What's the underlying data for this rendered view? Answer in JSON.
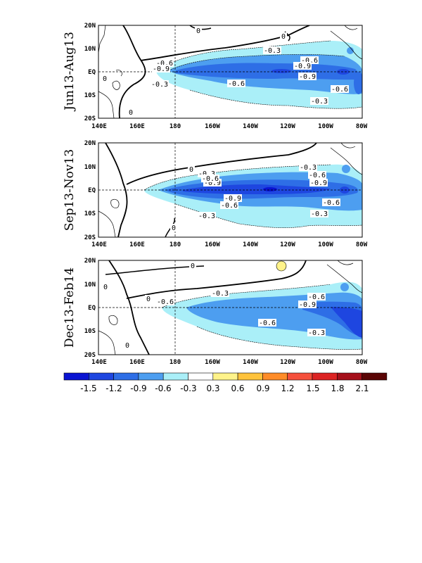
{
  "panels": [
    {
      "label": "Jun13-Aug13",
      "lat_ticks": [
        "20N",
        "10N",
        "EQ",
        "10S",
        "20S"
      ],
      "lon_ticks": [
        "140E",
        "160E",
        "180",
        "160W",
        "140W",
        "120W",
        "100W",
        "80W"
      ],
      "contour_labels": [
        "-0.3",
        "-0.6",
        "-0.9",
        "-0.9",
        "-0.6",
        "-0.6",
        "-0.9",
        "-0.6",
        "-0.3",
        "-0.3",
        "0",
        "0",
        "0",
        "0"
      ]
    },
    {
      "label": "Sep13-Nov13",
      "lat_ticks": [
        "20N",
        "10N",
        "EQ",
        "10S",
        "20S"
      ],
      "lon_ticks": [
        "140E",
        "160E",
        "180",
        "160W",
        "140W",
        "120W",
        "100W",
        "80W"
      ],
      "contour_labels": [
        "-0.3",
        "-0.6",
        "-0.9",
        "-0.3",
        "-0.6",
        "-0.9",
        "-0.9",
        "-0.6",
        "-0.6",
        "-0.3",
        "-0.3",
        "0",
        "0"
      ]
    },
    {
      "label": "Dec13-Feb14",
      "lat_ticks": [
        "20N",
        "10N",
        "EQ",
        "10S",
        "20S"
      ],
      "lon_ticks": [
        "140E",
        "160E",
        "180",
        "160W",
        "140W",
        "120W",
        "100W",
        "80W"
      ],
      "contour_labels": [
        "-0.3",
        "-0.6",
        "-0.6",
        "-0.9",
        "-0.6",
        "-0.3",
        "0",
        "0",
        "0",
        "0"
      ]
    }
  ],
  "colorbar": {
    "ticks": [
      "-1.5",
      "-1.2",
      "-0.9",
      "-0.6",
      "-0.3",
      "0.3",
      "0.6",
      "0.9",
      "1.2",
      "1.5",
      "1.8",
      "2.1"
    ],
    "colors": [
      "#0a14d2",
      "#1e46e0",
      "#2e6ee6",
      "#4d9ef0",
      "#aaeff8",
      "#ffffff",
      "#fff38a",
      "#ffc33c",
      "#ff8c28",
      "#f5503c",
      "#dc2323",
      "#a5101a",
      "#5a0505"
    ]
  }
}
